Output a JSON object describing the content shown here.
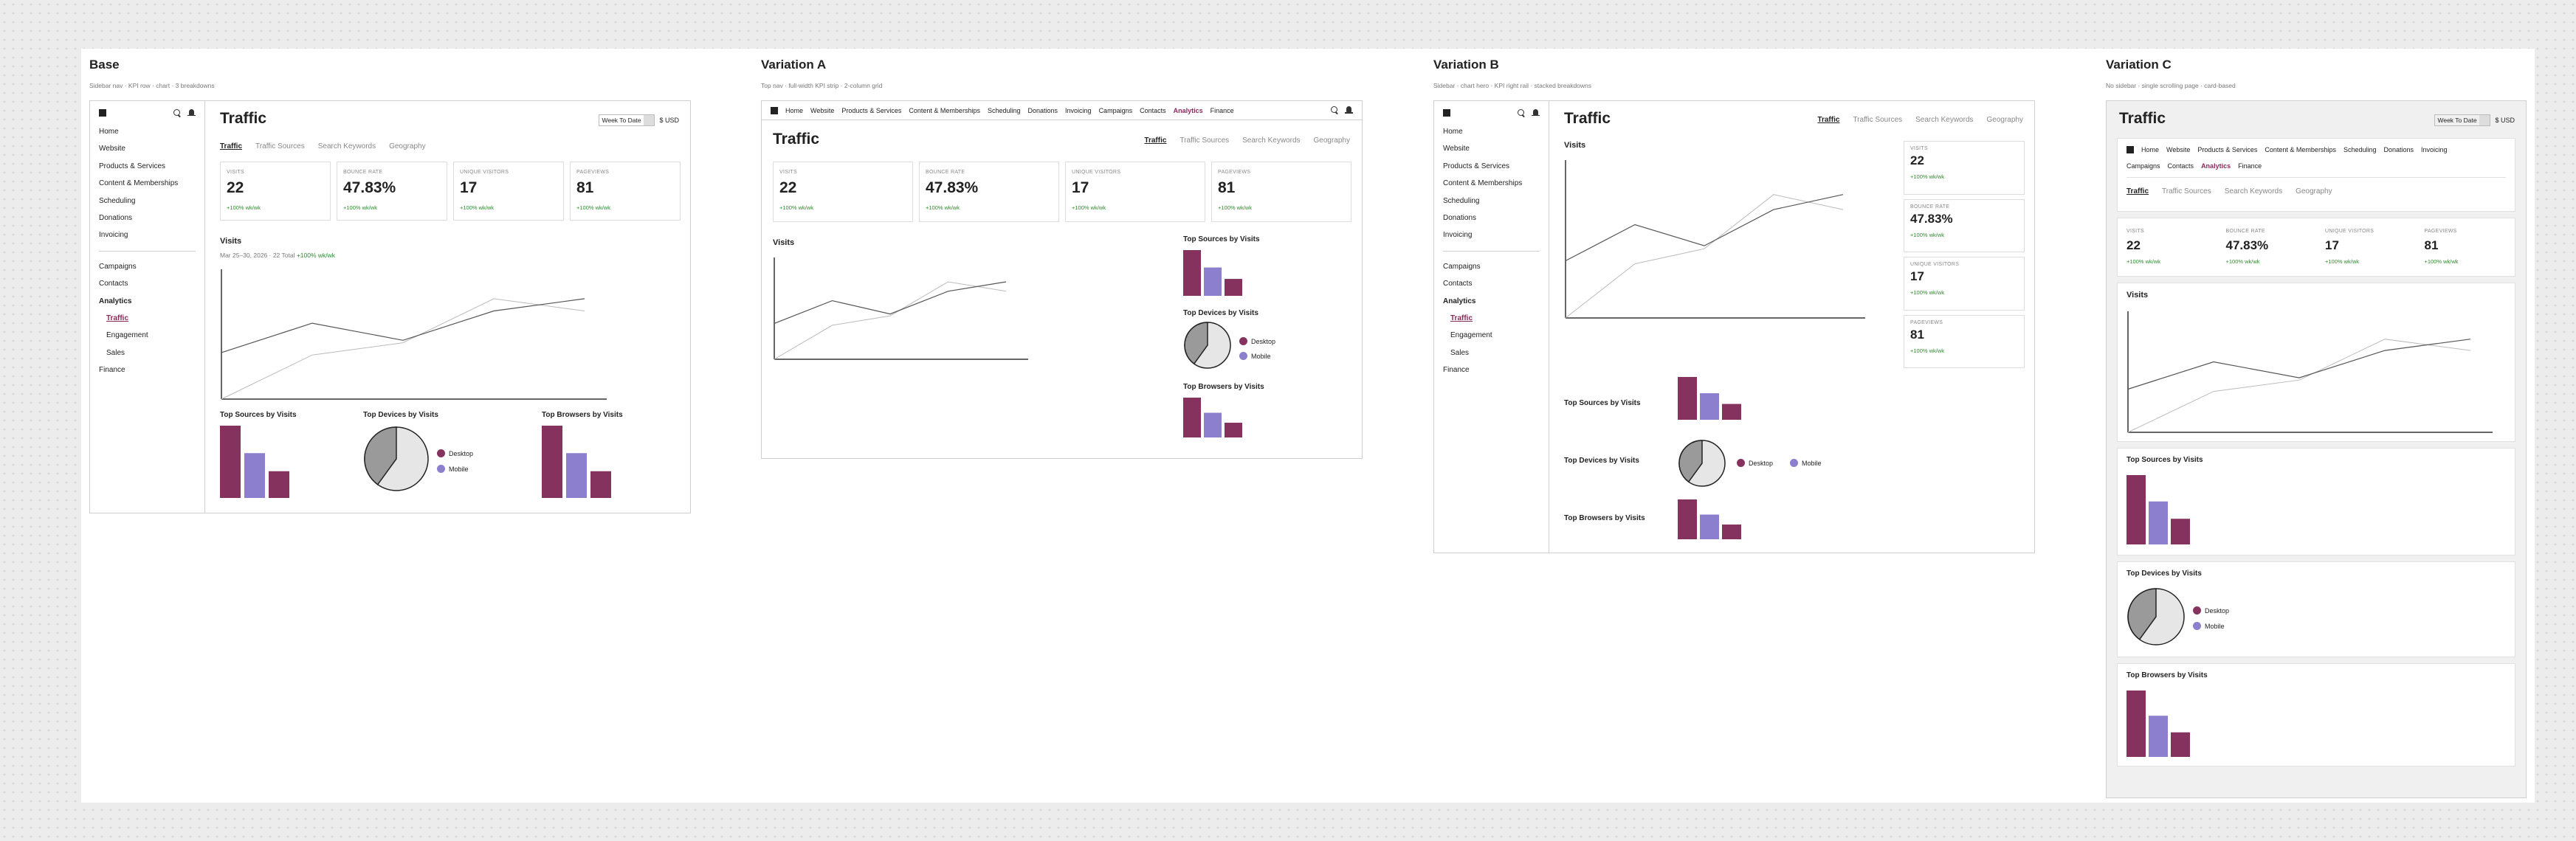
{
  "colors": {
    "maroon": "#85325e",
    "lavender": "#8b7fce",
    "green": "#2e8b2e",
    "grid_line": "#999999",
    "dark_line": "#555555"
  },
  "icons": {
    "brand": "square-logo-icon",
    "search": "search-icon",
    "bell": "bell-icon"
  },
  "nav_primary": [
    "Home",
    "Website",
    "Products & Services",
    "Content & Memberships",
    "Scheduling",
    "Donations",
    "Invoicing"
  ],
  "nav_secondary": [
    "Campaigns",
    "Contacts",
    "Analytics"
  ],
  "nav_analytics_sub": [
    "Traffic",
    "Engagement",
    "Sales"
  ],
  "nav_last": "Finance",
  "topnav_items": [
    "Home",
    "Website",
    "Products & Services",
    "Content & Memberships",
    "Scheduling",
    "Donations",
    "Invoicing",
    "Campaigns",
    "Contacts",
    "Analytics",
    "Finance"
  ],
  "page_title": "Traffic",
  "tabs": [
    "Traffic",
    "Traffic Sources",
    "Search Keywords",
    "Geography"
  ],
  "range": {
    "value": "Week To Date",
    "currency": "$ USD"
  },
  "kpis": [
    {
      "label": "VISITS",
      "value": "22",
      "delta": "+100% wk/wk"
    },
    {
      "label": "BOUNCE RATE",
      "value": "47.83%",
      "delta": "+100% wk/wk"
    },
    {
      "label": "UNIQUE VISITORS",
      "value": "17",
      "delta": "+100% wk/wk"
    },
    {
      "label": "PAGEVIEWS",
      "value": "81",
      "delta": "+100% wk/wk"
    }
  ],
  "visits": {
    "title": "Visits",
    "date_range": "Mar 25–30, 2026 · 22 Total",
    "delta": "+100% wk/wk"
  },
  "breakdowns": {
    "sources": "Top Sources by Visits",
    "devices": "Top Devices by Visits",
    "browsers": "Top Browsers by Visits"
  },
  "legend": {
    "desktop": "Desktop",
    "mobile": "Mobile"
  },
  "variants": {
    "base": {
      "title": "Base",
      "subtitle": "Sidebar nav · KPI row · chart · 3 breakdowns"
    },
    "a": {
      "title": "Variation A",
      "subtitle": "Top nav · full-width KPI strip · 2-column grid"
    },
    "b": {
      "title": "Variation B",
      "subtitle": "Sidebar · chart hero · KPI right rail · stacked breakdowns"
    },
    "c": {
      "title": "Variation C",
      "subtitle": "No sidebar · single scrolling page · card-based"
    }
  },
  "chart_data": {
    "type": "line",
    "series": [
      {
        "values": [
          0,
          0.36,
          0.46,
          0.82,
          0.72
        ]
      },
      {
        "values": [
          0.38,
          0.62,
          0.48,
          0.72,
          0.82
        ]
      }
    ],
    "bars": [
      1,
      0.62,
      0.37
    ],
    "pie_desktop_share": 0.4
  }
}
